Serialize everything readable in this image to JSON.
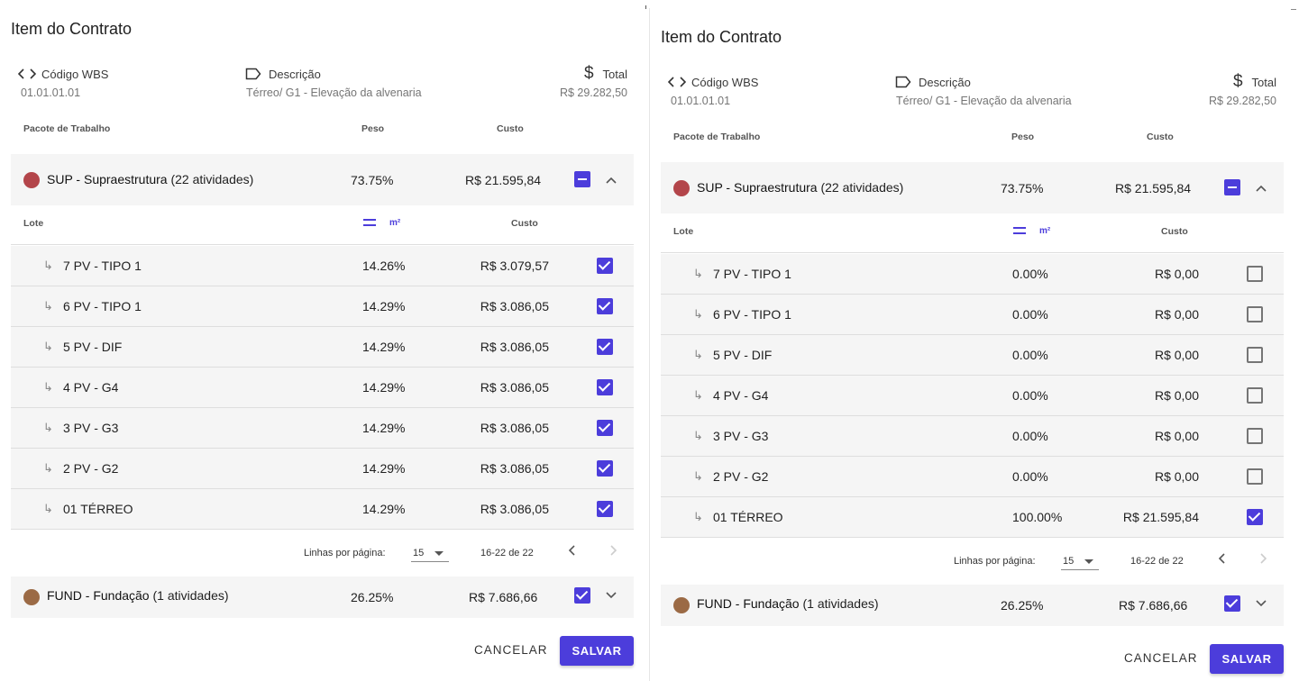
{
  "panels": [
    {
      "title": "Item do Contrato",
      "wbs_label": "Código WBS",
      "wbs_value": "01.01.01.01",
      "desc_label": "Descrição",
      "desc_value": "Térreo/ G1 - Elevação da alvenaria",
      "total_label": "Total",
      "total_value": "R$ 29.282,50",
      "table_headers": {
        "pacote": "Pacote de Trabalho",
        "peso": "Peso",
        "custo": "Custo"
      },
      "groups": [
        {
          "name": "SUP - Supraestrutura",
          "count": " (22 atividades)",
          "peso": "73.75%",
          "custo": "R$ 21.595,84",
          "color": "#b3454a",
          "state": "indeterminate",
          "expanded": true
        },
        {
          "name": "FUND - Fundação",
          "count": " (1 atividades)",
          "peso": "26.25%",
          "custo": "R$ 7.686,66",
          "color": "#9b6a45",
          "state": "checked",
          "expanded": false
        }
      ],
      "sub_headers": {
        "lote": "Lote",
        "unit": "m²",
        "custo": "Custo"
      },
      "lotes": [
        {
          "name": "7 PV - TIPO 1",
          "peso": "14.26%",
          "custo": "R$ 3.079,57",
          "checked": true
        },
        {
          "name": "6 PV - TIPO 1",
          "peso": "14.29%",
          "custo": "R$ 3.086,05",
          "checked": true
        },
        {
          "name": "5 PV - DIF",
          "peso": "14.29%",
          "custo": "R$ 3.086,05",
          "checked": true
        },
        {
          "name": "4 PV - G4",
          "peso": "14.29%",
          "custo": "R$ 3.086,05",
          "checked": true
        },
        {
          "name": "3 PV - G3",
          "peso": "14.29%",
          "custo": "R$ 3.086,05",
          "checked": true
        },
        {
          "name": "2 PV - G2",
          "peso": "14.29%",
          "custo": "R$ 3.086,05",
          "checked": true
        },
        {
          "name": "01 TÉRREO",
          "peso": "14.29%",
          "custo": "R$ 3.086,05",
          "checked": true
        }
      ],
      "pager": {
        "rows_label": "Linhas por página:",
        "rows_value": "15",
        "range": "16-22 de 22"
      },
      "cancel_label": "CANCELAR",
      "save_label": "SALVAR"
    },
    {
      "title": "Item do Contrato",
      "wbs_label": "Código WBS",
      "wbs_value": "01.01.01.01",
      "desc_label": "Descrição",
      "desc_value": "Térreo/ G1 - Elevação da alvenaria",
      "total_label": "Total",
      "total_value": "R$ 29.282,50",
      "table_headers": {
        "pacote": "Pacote de Trabalho",
        "peso": "Peso",
        "custo": "Custo"
      },
      "groups": [
        {
          "name": "SUP - Supraestrutura",
          "count": " (22 atividades)",
          "peso": "73.75%",
          "custo": "R$ 21.595,84",
          "color": "#b3454a",
          "state": "indeterminate",
          "expanded": true
        },
        {
          "name": "FUND - Fundação",
          "count": " (1 atividades)",
          "peso": "26.25%",
          "custo": "R$ 7.686,66",
          "color": "#9b6a45",
          "state": "checked",
          "expanded": false
        }
      ],
      "sub_headers": {
        "lote": "Lote",
        "unit": "m²",
        "custo": "Custo"
      },
      "lotes": [
        {
          "name": "7 PV - TIPO 1",
          "peso": "0.00%",
          "custo": "R$ 0,00",
          "checked": false
        },
        {
          "name": "6 PV - TIPO 1",
          "peso": "0.00%",
          "custo": "R$ 0,00",
          "checked": false
        },
        {
          "name": "5 PV - DIF",
          "peso": "0.00%",
          "custo": "R$ 0,00",
          "checked": false
        },
        {
          "name": "4 PV - G4",
          "peso": "0.00%",
          "custo": "R$ 0,00",
          "checked": false
        },
        {
          "name": "3 PV - G3",
          "peso": "0.00%",
          "custo": "R$ 0,00",
          "checked": false
        },
        {
          "name": "2 PV - G2",
          "peso": "0.00%",
          "custo": "R$ 0,00",
          "checked": false
        },
        {
          "name": "01 TÉRREO",
          "peso": "100.00%",
          "custo": "R$ 21.595,84",
          "checked": true
        }
      ],
      "pager": {
        "rows_label": "Linhas por página:",
        "rows_value": "15",
        "range": "16-22 de 22"
      },
      "cancel_label": "CANCELAR",
      "save_label": "SALVAR"
    }
  ]
}
